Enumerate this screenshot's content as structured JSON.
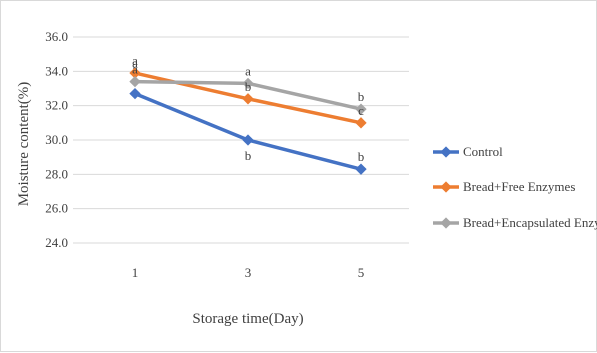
{
  "chart_data": {
    "type": "line",
    "title": "",
    "xlabel": "Storage time(Day)",
    "ylabel": "Moisture content(%)",
    "categories": [
      "1",
      "3",
      "5"
    ],
    "ylim": [
      24.0,
      36.0
    ],
    "yticks": [
      "24.0",
      "26.0",
      "28.0",
      "30.0",
      "32.0",
      "34.0",
      "36.0"
    ],
    "grid": true,
    "legend_position": "right",
    "series": [
      {
        "name": "Control",
        "color": "#4472C4",
        "values": [
          32.7,
          30.0,
          28.3
        ],
        "sig": [
          {
            "text": "a",
            "dir": "above"
          },
          {
            "text": "b",
            "dir": "below"
          },
          {
            "text": "b",
            "dir": "above"
          }
        ]
      },
      {
        "name": "Bread+Free Enzymes",
        "color": "#ED7D31",
        "values": [
          33.9,
          32.4,
          31.0
        ],
        "sig": [
          {
            "text": "a",
            "dir": "above"
          },
          {
            "text": "b",
            "dir": "above"
          },
          {
            "text": "c",
            "dir": "above"
          }
        ]
      },
      {
        "name": "Bread+Encapsulated Enzymes",
        "color": "#A5A5A5",
        "values": [
          33.4,
          33.3,
          31.8
        ],
        "sig": [
          {
            "text": "a",
            "dir": "above"
          },
          {
            "text": "a",
            "dir": "above"
          },
          {
            "text": "b",
            "dir": "above"
          }
        ]
      }
    ]
  }
}
